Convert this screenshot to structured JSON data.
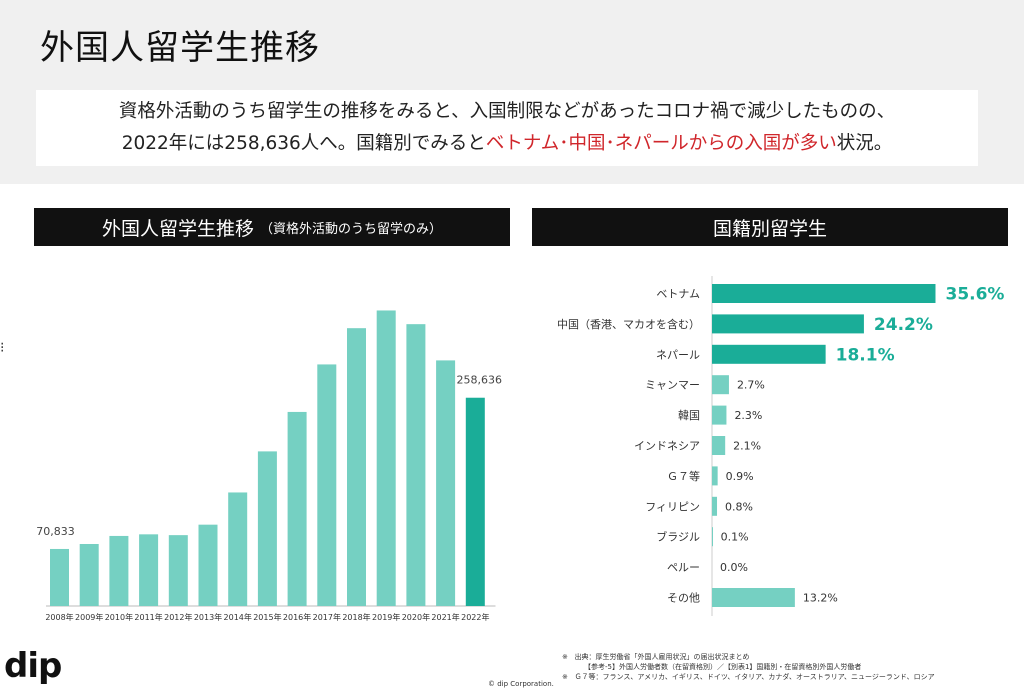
{
  "page_title": "外国人留学生推移",
  "summary": {
    "line1": "資格外活動のうち留学生の推移をみると、入国制限などがあったコロナ禍で減少したものの、",
    "line2_pre": "2022年には258,636人へ。国籍別でみると",
    "line2_hl": "ベトナム･中国･ネパールからの入国が多い",
    "line2_post": "状況。"
  },
  "left_panel": {
    "title": "外国人留学生推移",
    "subtitle": "（資格外活動のうち留学のみ）"
  },
  "right_panel": {
    "title": "国籍別留学生"
  },
  "colors": {
    "bar_light": "#75d0c2",
    "bar_dark": "#1aad98",
    "highlight_red": "#d0262b",
    "header_bg": "#111111"
  },
  "chart_data": [
    {
      "type": "bar",
      "title": "外国人留学生推移",
      "categories": [
        "2008年",
        "2009年",
        "2010年",
        "2011年",
        "2012年",
        "2013年",
        "2014年",
        "2015年",
        "2016年",
        "2017年",
        "2018年",
        "2019年",
        "2020年",
        "2021年",
        "2022年"
      ],
      "values": [
        70833,
        77000,
        87000,
        89000,
        88000,
        101000,
        141000,
        192000,
        241000,
        300000,
        345000,
        367000,
        350000,
        305000,
        258636
      ],
      "data_labels": {
        "0": "70,833",
        "14": "258,636"
      },
      "highlight_index": 14,
      "ylim": [
        0,
        380000
      ]
    },
    {
      "type": "bar",
      "orientation": "horizontal",
      "title": "国籍別留学生",
      "categories": [
        "ベトナム",
        "中国（香港、マカオを含む）",
        "ネパール",
        "ミャンマー",
        "韓国",
        "インドネシア",
        "Ｇ７等",
        "フィリピン",
        "ブラジル",
        "ペルー",
        "その他"
      ],
      "values": [
        35.6,
        24.2,
        18.1,
        2.7,
        2.3,
        2.1,
        0.9,
        0.8,
        0.1,
        0.0,
        13.2
      ],
      "value_labels": [
        "35.6%",
        "24.2%",
        "18.1%",
        "2.7%",
        "2.3%",
        "2.1%",
        "0.9%",
        "0.8%",
        "0.1%",
        "0.0%",
        "13.2%"
      ],
      "highlight_top": 3,
      "xlim": [
        0,
        36
      ]
    }
  ],
  "footer": {
    "logo": "dip",
    "copyright": "© dip Corporation.",
    "note1_mark": "※",
    "note1": "出典：厚生労働省「外国人雇用状況」の届出状況まとめ",
    "note1b": "【参考-5】外国人労働者数（在留資格別）／【別表1】国籍別・在留資格別外国人労働者",
    "note2_mark": "※",
    "note2": "Ｇ７等：フランス、アメリカ、イギリス、ドイツ、イタリア、カナダ、オーストラリア、ニュージーランド、ロシア"
  }
}
